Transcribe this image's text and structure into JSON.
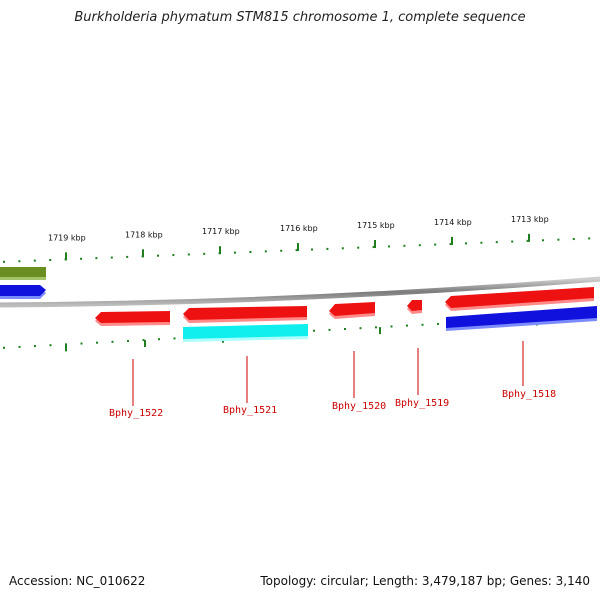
{
  "title": "Burkholderia phymatum STM815 chromosome 1, complete sequence",
  "footer": {
    "accession": "Accession: NC_010622",
    "summary": "Topology: circular; Length: 3,479,187 bp; Genes: 3,140"
  },
  "colors": {
    "background": "#ffffff",
    "backbone": "#8c8c8c",
    "tick": "#1f7f1f",
    "gene_red": "#ee1111",
    "gene_blue": "#1111dd",
    "gene_cyan": "#11eeee",
    "gene_olive": "#6b8e23",
    "label": "#cc0000"
  },
  "scale": {
    "unit": "kbp",
    "labels": [
      "1719 kbp",
      "1718 kbp",
      "1717 kbp",
      "1716 kbp",
      "1715 kbp",
      "1714 kbp",
      "1713 kbp"
    ]
  },
  "genes": [
    {
      "label": "Bphy_1522"
    },
    {
      "label": "Bphy_1521"
    },
    {
      "label": "Bphy_1520"
    },
    {
      "label": "Bphy_1519"
    },
    {
      "label": "Bphy_1518"
    }
  ]
}
